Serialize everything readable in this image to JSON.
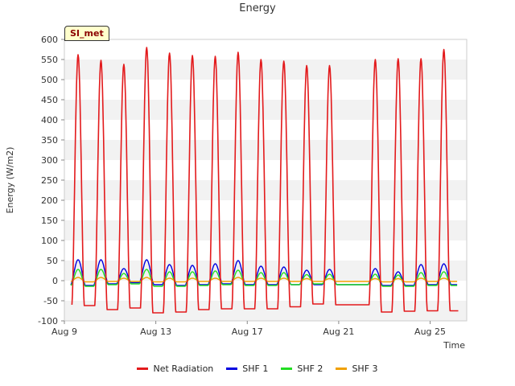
{
  "chart_data": {
    "type": "line",
    "title": "Energy",
    "ylabel": "Energy (W/m2)",
    "xlabel": "Time",
    "site_label": "SI_met",
    "ylim": [
      -100,
      600
    ],
    "xlim": [
      9,
      26.6
    ],
    "yticks": [
      -100,
      -50,
      0,
      50,
      100,
      150,
      200,
      250,
      300,
      350,
      400,
      450,
      500,
      550,
      600
    ],
    "xticks": [
      {
        "value": 9,
        "label": "Aug 9"
      },
      {
        "value": 13,
        "label": "Aug 13"
      },
      {
        "value": 17,
        "label": "Aug 17"
      },
      {
        "value": 21,
        "label": "Aug 21"
      },
      {
        "value": 25,
        "label": "Aug 25"
      }
    ],
    "grid": "horizontal bands",
    "legend_position": "bottom",
    "x_units": "day of August (noon peak times)",
    "days": [
      9.6,
      10.6,
      11.6,
      12.6,
      13.6,
      14.6,
      15.6,
      16.6,
      17.6,
      18.6,
      19.6,
      20.6,
      22.6,
      23.6,
      24.6,
      25.6
    ],
    "series": [
      {
        "name": "Net Radiation",
        "color": "#e31a1c",
        "peaks": [
          562,
          548,
          538,
          580,
          566,
          560,
          558,
          568,
          550,
          546,
          535,
          535,
          550,
          552,
          552,
          575
        ],
        "night": [
          -60,
          -62,
          -72,
          -68,
          -80,
          -78,
          -72,
          -70,
          -70,
          -70,
          -65,
          -58,
          -60,
          -78,
          -76,
          -75
        ]
      },
      {
        "name": "SHF 1",
        "color": "#0000e0",
        "peaks": [
          52,
          52,
          30,
          52,
          40,
          38,
          42,
          50,
          36,
          34,
          26,
          28,
          30,
          22,
          40,
          42
        ],
        "night": [
          -10,
          -12,
          -8,
          -5,
          -10,
          -12,
          -10,
          -8,
          -10,
          -10,
          -10,
          -10,
          -10,
          -12,
          -12,
          -10
        ]
      },
      {
        "name": "SHF 2",
        "color": "#22dd22",
        "peaks": [
          28,
          28,
          18,
          28,
          22,
          22,
          24,
          26,
          20,
          20,
          15,
          16,
          16,
          14,
          20,
          22
        ],
        "night": [
          -12,
          -14,
          -10,
          -8,
          -14,
          -14,
          -12,
          -10,
          -12,
          -12,
          -10,
          -8,
          -10,
          -14,
          -14,
          -12
        ]
      },
      {
        "name": "SHF 3",
        "color": "#f0a000",
        "peaks": [
          8,
          8,
          6,
          8,
          6,
          6,
          6,
          8,
          6,
          6,
          5,
          5,
          5,
          5,
          6,
          6
        ],
        "night": [
          -2,
          -3,
          -2,
          -2,
          -3,
          -3,
          -2,
          -2,
          -2,
          -2,
          -2,
          -2,
          -2,
          -3,
          -3,
          -2
        ]
      }
    ]
  }
}
